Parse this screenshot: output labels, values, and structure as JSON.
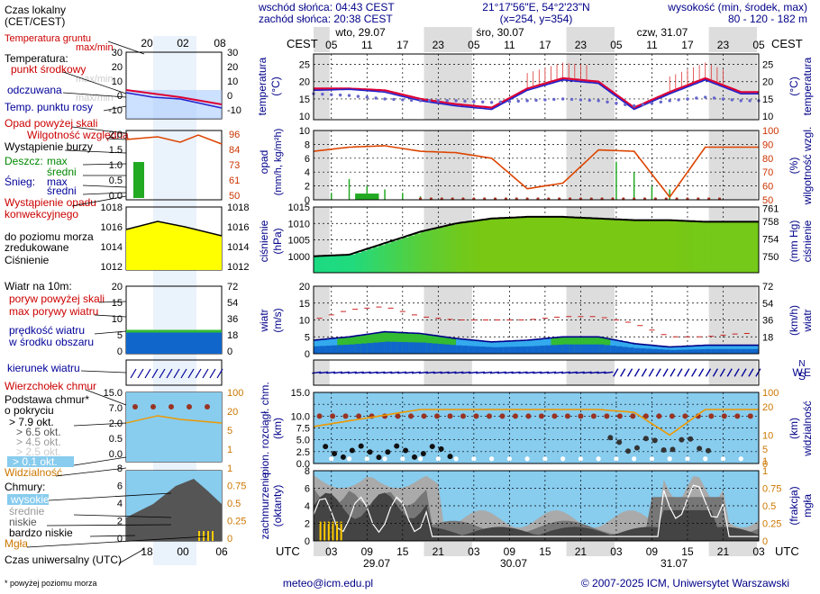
{
  "header": {
    "sunrise": "wschód słońca: 04:43 CEST",
    "sunset": "zachód słońca: 20:38 CEST",
    "coords": "21°17'56\"E, 54°2'23\"N",
    "grid": "(x=254, y=354)",
    "altitude_title": "wysokość (min, środek, max)",
    "altitude_values": "80 - 120 - 182 m"
  },
  "legend": {
    "local_time": "Czas lokalny",
    "local_time_sub": "(CET/CEST)",
    "local_ticks": [
      "20",
      "02",
      "08"
    ],
    "soil_temp": "Temperatura gruntu",
    "soil_temp_sub": "max/min",
    "temperature": "Temperatura:",
    "temp_mid": "punkt środkowy",
    "temp_maxmin": "max/min",
    "felt": "odczuwana",
    "felt_maxmin": "max/min",
    "dew": "Temp. punktu rosy",
    "precip_above": "Opad powyżej skali",
    "humidity": "Wilgotność względna",
    "storm": "Wystąpienie burzy",
    "rain": "Deszcz:",
    "snow": "Śnieg:",
    "max": "max",
    "mid": "średni",
    "convective": "Wystąpienie opadu",
    "convective2": "konwekcyjnego",
    "pressure1": "Ciśnienie",
    "pressure2": "zredukowane",
    "pressure3": "do poziomu morza",
    "wind10": "Wiatr na 10m:",
    "gust_above": "poryw powyżej skali",
    "gust_max": "max porywy wiatru",
    "wind_mean1": "prędkość wiatru",
    "wind_mean2": "w środku obszaru",
    "wind_dir": "kierunek wiatru",
    "cloud_top": "Wierzchołek chmur",
    "cloud_base1": "Podstawa chmur*",
    "cloud_base2": "o pokryciu",
    "okt79": "> 7.9 okt.",
    "okt65": "> 6.5 okt.",
    "okt45": "> 4.5 okt.",
    "okt25": "> 2.5 okt.",
    "okt01": "> 0.1 okt.",
    "visibility": "Widzialność",
    "clouds": "Chmury:",
    "high": "wysokie",
    "medium": "średnie",
    "low": "niskie",
    "very_low": "bardzo niskie",
    "fog": "Mgła",
    "utc_time": "Czas uniwersalny (UTC)",
    "utc_ticks": [
      "18",
      "00",
      "06"
    ],
    "footnote": "* powyżej poziomu morza"
  },
  "axes": {
    "cest": "CEST",
    "utc": "UTC",
    "days_top": [
      "wto, 29.07",
      "śro, 30.07",
      "czw, 31.07"
    ],
    "cest_ticks": [
      "05",
      "11",
      "17",
      "23",
      "05",
      "11",
      "17",
      "23",
      "05",
      "11",
      "17",
      "23",
      "05"
    ],
    "utc_ticks": [
      "03",
      "09",
      "15",
      "21",
      "03",
      "09",
      "15",
      "21",
      "03",
      "09",
      "15",
      "21",
      "03"
    ],
    "days_bottom": [
      "29.07",
      "30.07",
      "31.07"
    ],
    "temp_label": "temperatura",
    "temp_unit": "(°C)",
    "precip_label": "opad",
    "precip_unit": "(mm/h, kg/m²h)",
    "hum_label": "wilgotność wzgl.",
    "hum_unit": "(%)",
    "press_label": "ciśnienie",
    "press_unit": "(hPa)",
    "pressmm_label": "ciśnienie",
    "pressmm_unit": "(mm Hg)",
    "wind_label": "wiatr",
    "wind_unit": "(m/s)",
    "windkm_label": "wiatr",
    "windkm_unit": "(km/h)",
    "base_label": "pion. rozciągł. chm.",
    "base_unit": "(km)",
    "vis_label": "widzialność",
    "vis_unit": "(km)",
    "cov_label": "zachmurzenie",
    "cov_unit": "(oktanty)",
    "fog_label": "mgła",
    "fog_unit": "(frakcja)",
    "compass": [
      "N",
      "W",
      "E",
      "S"
    ]
  },
  "footer": {
    "email": "meteo@icm.edu.pl",
    "copyright": "© 2007-2025 ICM, Uniwersytet Warszawski"
  },
  "colors": {
    "temp_mid": "#dd0033",
    "felt": "#2222cc",
    "dew": "#6666cc",
    "humidity": "#dd4400",
    "rain": "#22aa22",
    "pressure_yellow": "#ffff00",
    "pressure_green": "#66dd22",
    "wind_blue": "#1166cc",
    "wind_green": "#33bb33",
    "cloud_sky": "#88ccee",
    "visibility": "#ee9900",
    "night": "#dddddd"
  },
  "chart_data": [
    {
      "type": "line",
      "name_id": "temperature",
      "x_hours_utc_from": "29.07 00:00",
      "x": [
        0,
        6,
        12,
        18,
        24,
        30,
        36,
        42,
        48,
        54,
        60,
        66,
        72
      ],
      "series": [
        {
          "name": "punkt środkowy",
          "values": [
            18,
            18,
            17.5,
            15,
            13.5,
            12.5,
            18,
            21,
            20,
            12.5,
            17,
            21,
            17
          ]
        },
        {
          "name": "odczuwana",
          "values": [
            17.5,
            17.8,
            17,
            14.5,
            13,
            12,
            17.5,
            20.5,
            19.5,
            12,
            16.5,
            20.5,
            16.5
          ]
        },
        {
          "name": "Temp. punktu rosy",
          "values": [
            16.5,
            16,
            15,
            14.5,
            14.5,
            14,
            14.5,
            15,
            14.5,
            13,
            14.5,
            15.5,
            14.5
          ]
        }
      ],
      "ylim": [
        10,
        25
      ]
    },
    {
      "type": "bar",
      "name_id": "precipitation",
      "x": [
        3,
        6,
        9,
        12,
        15,
        18,
        51,
        54,
        57,
        60
      ],
      "values": [
        1,
        3,
        2,
        1.5,
        1,
        0.5,
        5.5,
        4,
        2,
        1.5
      ],
      "ylim": [
        0,
        10
      ]
    },
    {
      "type": "line",
      "name_id": "humidity",
      "x": [
        0,
        6,
        12,
        18,
        24,
        30,
        36,
        42,
        48,
        54,
        60,
        66,
        72
      ],
      "values": [
        85,
        88,
        89,
        85,
        84,
        80,
        58,
        62,
        86,
        85,
        52,
        88,
        88
      ],
      "ylim": [
        50,
        100
      ]
    },
    {
      "type": "area",
      "name_id": "pressure",
      "x": [
        0,
        6,
        12,
        18,
        24,
        30,
        36,
        42,
        48,
        54,
        60,
        66,
        72
      ],
      "values": [
        1000,
        1000.5,
        1004,
        1007.5,
        1010,
        1011.5,
        1012,
        1012,
        1011.5,
        1011,
        1011,
        1010.5,
        1010.5
      ],
      "ylim": [
        995,
        1015
      ]
    },
    {
      "type": "line",
      "name_id": "wind",
      "x": [
        0,
        6,
        12,
        18,
        24,
        30,
        36,
        42,
        48,
        54,
        60,
        66,
        72
      ],
      "series": [
        {
          "name": "max porywy wiatru",
          "values": [
            10,
            13,
            14,
            11,
            10,
            10,
            10,
            11,
            11,
            9,
            5,
            5,
            6
          ]
        },
        {
          "name": "prędkość wiatru",
          "values": [
            4,
            5,
            6.5,
            6,
            4.5,
            3.5,
            4,
            5,
            5,
            3,
            2,
            2.5,
            2.5
          ]
        }
      ],
      "ylim": [
        0,
        20
      ]
    },
    {
      "type": "line",
      "name_id": "visibility",
      "x": [
        0,
        6,
        12,
        18,
        24,
        30,
        36,
        42,
        48,
        54,
        60,
        66,
        72
      ],
      "values": [
        13,
        15,
        17,
        19,
        19,
        19,
        19,
        19,
        19,
        18,
        10,
        19,
        19
      ],
      "ylim": [
        0,
        25
      ]
    }
  ]
}
